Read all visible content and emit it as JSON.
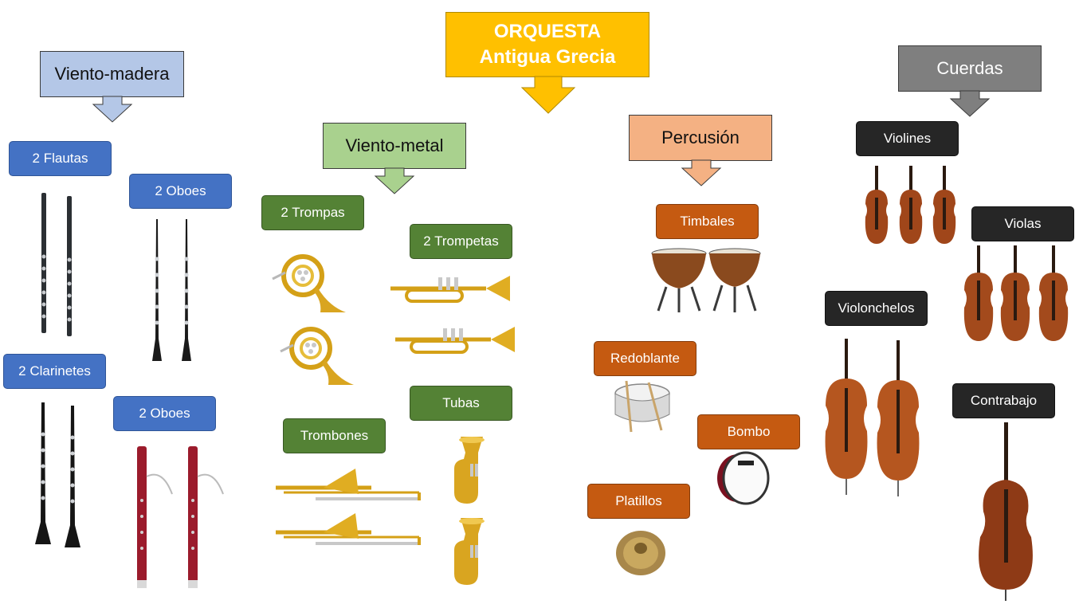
{
  "title": {
    "line1": "ORQUESTA",
    "line2": "Antigua Grecia"
  },
  "sections": {
    "woodwind": "Viento-madera",
    "brass": "Viento-metal",
    "percussion": "Percusión",
    "strings": "Cuerdas"
  },
  "labels": {
    "flutes": "2 Flautas",
    "oboes": "2 Oboes",
    "clarinets": "2 Clarinetes",
    "bassoons": "2 Oboes",
    "horns": "2 Trompas",
    "trumpets": "2 Trompetas",
    "tubas": "Tubas",
    "trombones": "Trombones",
    "timpani": "Timbales",
    "snare": "Redoblante",
    "bass_drum": "Bombo",
    "cymbals": "Platillos",
    "violins": "Violines",
    "violas": "Violas",
    "cellos": "Violonchelos",
    "double_bass": "Contrabajo"
  },
  "colors": {
    "title": "#ffc000",
    "woodwind": "#b4c7e7",
    "brass": "#a9d18e",
    "percussion": "#f4b183",
    "strings": "#7f7f7f",
    "label_blue": "#4472c4",
    "label_green": "#548235",
    "label_orange": "#c55a11",
    "label_black": "#262626"
  },
  "icons": [
    "flute-icon",
    "oboe-icon",
    "clarinet-icon",
    "bassoon-icon",
    "french-horn-icon",
    "trumpet-icon",
    "trombone-icon",
    "tuba-icon",
    "timpani-icon",
    "snare-drum-icon",
    "bass-drum-icon",
    "cymbal-icon",
    "violin-icon",
    "viola-icon",
    "cello-icon",
    "double-bass-icon"
  ]
}
